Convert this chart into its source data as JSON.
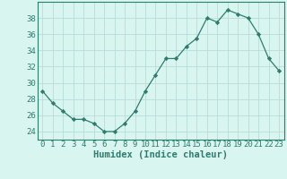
{
  "x": [
    0,
    1,
    2,
    3,
    4,
    5,
    6,
    7,
    8,
    9,
    10,
    11,
    12,
    13,
    14,
    15,
    16,
    17,
    18,
    19,
    20,
    21,
    22,
    23
  ],
  "y": [
    29,
    27.5,
    26.5,
    25.5,
    25.5,
    25,
    24,
    24,
    25,
    26.5,
    29,
    31,
    33,
    33,
    34.5,
    35.5,
    38,
    37.5,
    39,
    38.5,
    38,
    36,
    33,
    31.5
  ],
  "line_color": "#2d7d6f",
  "marker_color": "#2d7d6f",
  "bg_color": "#d8f5f0",
  "grid_color": "#b8ddd8",
  "xlabel": "Humidex (Indice chaleur)",
  "ylabel_ticks": [
    24,
    26,
    28,
    30,
    32,
    34,
    36,
    38
  ],
  "ylim": [
    23.0,
    40.0
  ],
  "xlim": [
    -0.5,
    23.5
  ],
  "axis_color": "#2d7d6f",
  "tick_fontsize": 6.5,
  "xlabel_fontsize": 7.5
}
